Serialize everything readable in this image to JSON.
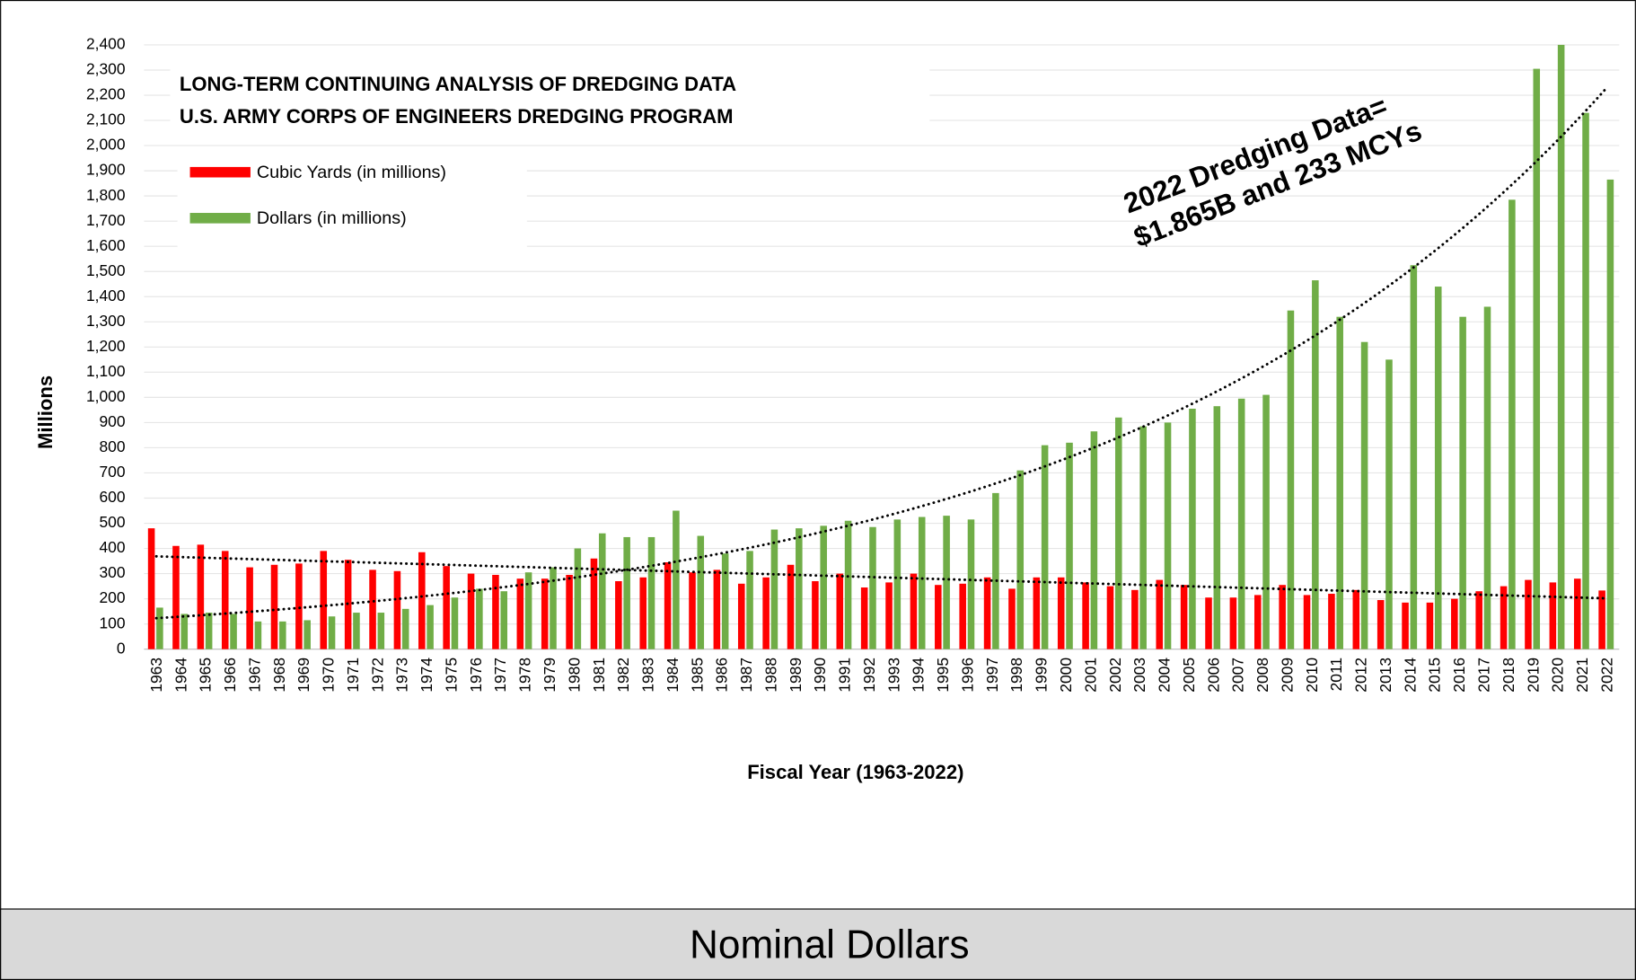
{
  "chart_data": {
    "type": "bar",
    "title": [
      "LONG-TERM CONTINUING ANALYSIS OF DREDGING DATA",
      "U.S. ARMY CORPS OF ENGINEERS DREDGING PROGRAM"
    ],
    "y_label": "Millions",
    "x_label": "Fiscal Year (1963-2022)",
    "annotation": [
      "2022 Dredging Data=",
      "$1.865B and 233 MCYs"
    ],
    "footer": "Nominal Dollars",
    "categories": [
      "1963",
      "1964",
      "1965",
      "1966",
      "1967",
      "1968",
      "1969",
      "1970",
      "1971",
      "1972",
      "1973",
      "1974",
      "1975",
      "1976",
      "1977",
      "1978",
      "1979",
      "1980",
      "1981",
      "1982",
      "1983",
      "1984",
      "1985",
      "1986",
      "1987",
      "1988",
      "1989",
      "1990",
      "1991",
      "1992",
      "1993",
      "1994",
      "1995",
      "1996",
      "1997",
      "1998",
      "1999",
      "2000",
      "2001",
      "2002",
      "2003",
      "2004",
      "2005",
      "2006",
      "2007",
      "2008",
      "2009",
      "2010",
      "2011",
      "2012",
      "2013",
      "2014",
      "2015",
      "2016",
      "2017",
      "2018",
      "2019",
      "2020",
      "2021",
      "2022"
    ],
    "series": [
      {
        "name": "Cubic Yards (in millions)",
        "color": "#ff0000",
        "trendline": "linear",
        "values": [
          480,
          410,
          415,
          390,
          325,
          335,
          340,
          390,
          355,
          315,
          310,
          385,
          330,
          300,
          295,
          280,
          280,
          295,
          360,
          270,
          285,
          345,
          305,
          315,
          260,
          285,
          335,
          270,
          300,
          245,
          265,
          300,
          255,
          260,
          285,
          240,
          285,
          285,
          265,
          250,
          235,
          275,
          255,
          205,
          205,
          215,
          255,
          215,
          220,
          235,
          195,
          185,
          185,
          200,
          230,
          250,
          275,
          265,
          280,
          233
        ]
      },
      {
        "name": "Dollars (in millions)",
        "color": "#70ad47",
        "trendline": "exponential",
        "values": [
          165,
          140,
          145,
          140,
          110,
          110,
          115,
          130,
          145,
          145,
          160,
          175,
          205,
          240,
          230,
          305,
          325,
          400,
          460,
          445,
          445,
          550,
          450,
          380,
          390,
          475,
          480,
          490,
          510,
          485,
          515,
          525,
          530,
          515,
          620,
          710,
          810,
          820,
          865,
          920,
          885,
          900,
          955,
          965,
          995,
          1010,
          1345,
          1465,
          1320,
          1220,
          1150,
          1525,
          1440,
          1320,
          1360,
          1785,
          2305,
          2400,
          2130,
          1865
        ]
      }
    ],
    "ylim": [
      0,
      2400
    ],
    "yticks": [
      0,
      100,
      200,
      300,
      400,
      500,
      600,
      700,
      800,
      900,
      {
        "value": 1000,
        "label": "1,000"
      },
      {
        "value": 1100,
        "label": "1,100"
      },
      {
        "value": 1200,
        "label": "1,200"
      },
      {
        "value": 1300,
        "label": "1,300"
      },
      {
        "value": 1400,
        "label": "1,400"
      },
      {
        "value": 1500,
        "label": "1,500"
      },
      {
        "value": 1600,
        "label": "1,600"
      },
      {
        "value": 1700,
        "label": "1,700"
      },
      {
        "value": 1800,
        "label": "1,800"
      },
      {
        "value": 1900,
        "label": "1,900"
      },
      {
        "value": 2000,
        "label": "2,000"
      },
      {
        "value": 2100,
        "label": "2,100"
      },
      {
        "value": 2200,
        "label": "2,200"
      },
      {
        "value": 2300,
        "label": "2,300"
      },
      {
        "value": 2400,
        "label": "2,400"
      }
    ],
    "grid": true
  }
}
